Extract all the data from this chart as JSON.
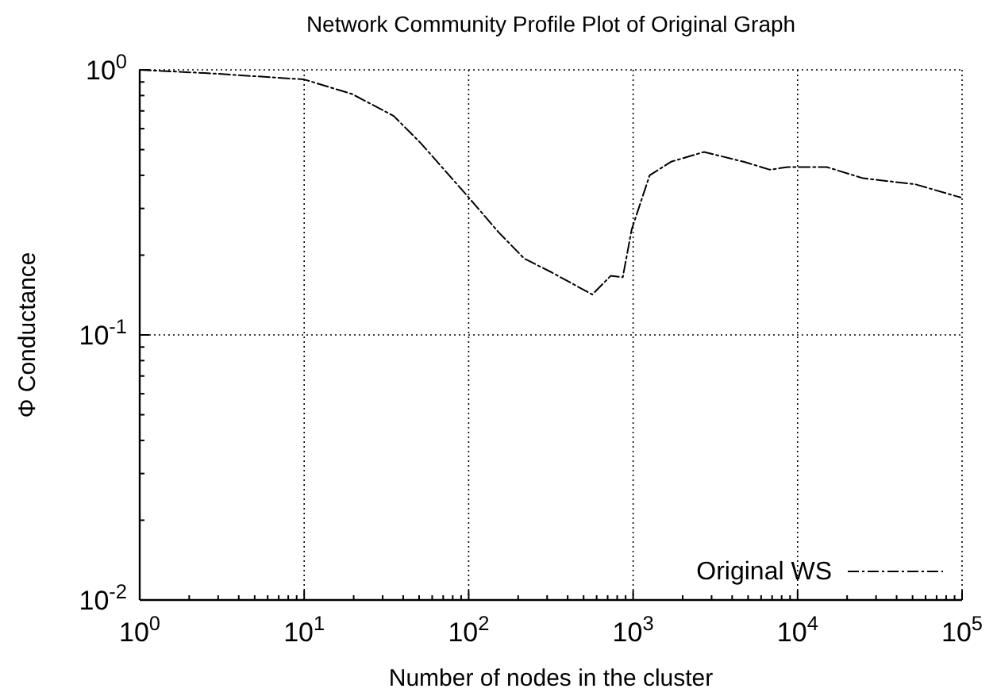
{
  "chart_data": {
    "type": "line",
    "title": "Network Community Profile Plot of Original Graph",
    "xlabel": "Number of nodes in the cluster",
    "ylabel": "Φ Conductance",
    "log": "xy",
    "grid": true,
    "legend": "bottom right",
    "line_style": "dashed",
    "xlim": [
      1,
      100000
    ],
    "xticks": [
      {
        "value": 1,
        "label": "10$^{0}$"
      },
      {
        "value": 10,
        "label": "10$^{1}$"
      },
      {
        "value": 100,
        "label": "10$^{2}$"
      },
      {
        "value": 1000,
        "label": "10$^{3}$"
      },
      {
        "value": 10000,
        "label": "10$^{4}$"
      },
      {
        "value": 100000,
        "label": "10$^{5}$"
      }
    ],
    "ylim": [
      0.01,
      1
    ],
    "yticks": [
      {
        "value": 0.01,
        "label": "10$^{-2}$"
      },
      {
        "value": 0.1,
        "label": "10$^{-1}$"
      },
      {
        "value": 1,
        "label": "10$^{0}$"
      }
    ],
    "series": [
      {
        "name": "Original WS",
        "color": "#000000",
        "x": [
          1,
          2.7,
          10,
          19.6,
          35,
          51,
          100,
          152,
          218,
          315,
          565,
          730,
          865,
          980,
          1260,
          1700,
          2700,
          4700,
          6800,
          8700,
          15000,
          25000,
          52000,
          98000
        ],
        "values": [
          1.0,
          0.97,
          0.92,
          0.81,
          0.67,
          0.53,
          0.33,
          0.244,
          0.194,
          0.173,
          0.142,
          0.167,
          0.165,
          0.25,
          0.4,
          0.45,
          0.49,
          0.45,
          0.42,
          0.43,
          0.43,
          0.39,
          0.37,
          0.33
        ]
      }
    ]
  }
}
